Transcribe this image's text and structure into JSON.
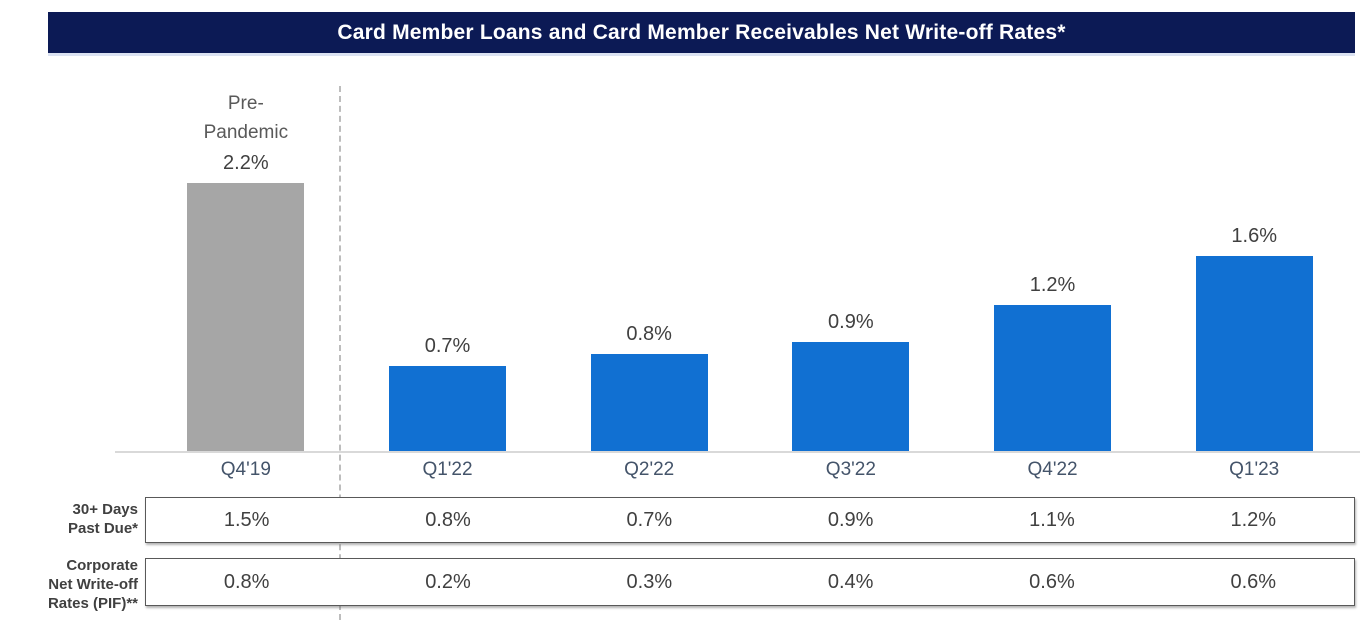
{
  "title": "Card Member Loans and Card Member Receivables Net Write-off Rates*",
  "colors": {
    "banner_bg": "#0C1A55",
    "banner_text": "#FFFFFF",
    "bar_blue": "#1170D2",
    "bar_gray": "#A6A6A6",
    "axis_line": "#D9D9D9",
    "dashed_separator": "#BDBDBD",
    "value_text": "#404040",
    "category_text": "#44546A",
    "annotation_text": "#595959",
    "table_border": "#595959"
  },
  "chart_data": {
    "type": "bar",
    "title": "Card Member Loans and Card Member Receivables Net Write-off Rates*",
    "categories": [
      "Q4'19",
      "Q1'22",
      "Q2'22",
      "Q3'22",
      "Q4'22",
      "Q1'23"
    ],
    "values": [
      2.2,
      0.7,
      0.8,
      0.9,
      1.2,
      1.6
    ],
    "value_labels": [
      "2.2%",
      "0.7%",
      "0.8%",
      "0.9%",
      "1.2%",
      "1.6%"
    ],
    "bar_colors": [
      "#A6A6A6",
      "#1170D2",
      "#1170D2",
      "#1170D2",
      "#1170D2",
      "#1170D2"
    ],
    "ylim": [
      0,
      2.2
    ],
    "grid": false,
    "legend": "none",
    "annotation": {
      "column": 0,
      "lines": [
        "Pre-",
        "Pandemic"
      ]
    },
    "separator": {
      "after_column": 0,
      "style": "dashed"
    },
    "tables": [
      {
        "label_lines": [
          "30+ Days",
          "Past Due*"
        ],
        "values": [
          "1.5%",
          "0.8%",
          "0.7%",
          "0.9%",
          "1.1%",
          "1.2%"
        ]
      },
      {
        "label_lines": [
          "Corporate",
          "Net Write-off",
          "Rates (PIF)**"
        ],
        "values": [
          "0.8%",
          "0.2%",
          "0.3%",
          "0.4%",
          "0.6%",
          "0.6%"
        ]
      }
    ]
  }
}
